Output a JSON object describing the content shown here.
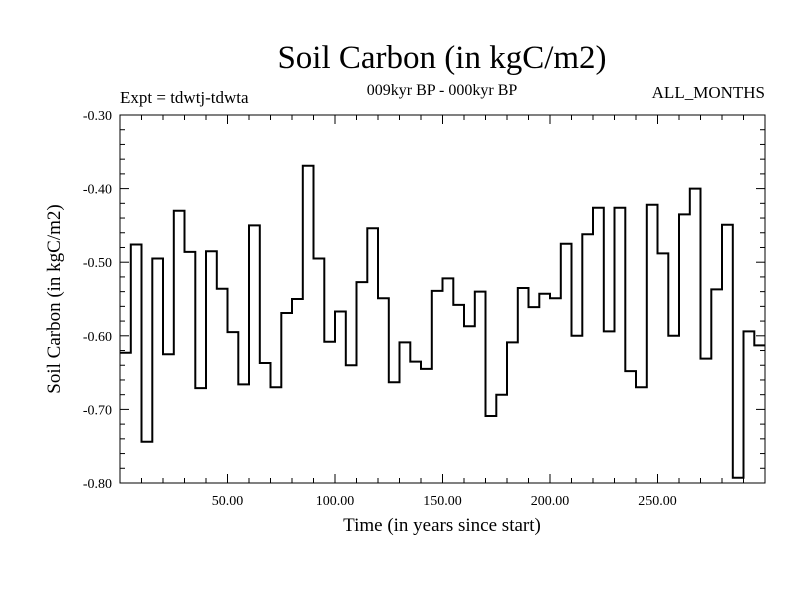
{
  "chart_data": {
    "type": "line",
    "style": "step",
    "title": "Soil Carbon (in kgC/m2)",
    "subtitle": "009kyr BP - 000kyr BP",
    "left_label": "Expt = tdwtj-tdwta",
    "right_label": "ALL_MONTHS",
    "xlabel": "Time (in years since start)",
    "ylabel": "Soil Carbon (in kgC/m2)",
    "xlim": [
      0,
      300
    ],
    "ylim": [
      -0.8,
      -0.3
    ],
    "xticks": [
      50,
      100,
      150,
      200,
      250
    ],
    "xtick_labels": [
      "50.00",
      "100.00",
      "150.00",
      "200.00",
      "250.00"
    ],
    "yticks": [
      -0.3,
      -0.4,
      -0.5,
      -0.6,
      -0.7,
      -0.8
    ],
    "ytick_labels": [
      "-0.30",
      "-0.40",
      "-0.50",
      "-0.60",
      "-0.70",
      "-0.80"
    ],
    "bin_width": 5,
    "x": [
      0,
      5,
      10,
      15,
      20,
      25,
      30,
      35,
      40,
      45,
      50,
      55,
      60,
      65,
      70,
      75,
      80,
      85,
      90,
      95,
      100,
      105,
      110,
      115,
      120,
      125,
      130,
      135,
      140,
      145,
      150,
      155,
      160,
      165,
      170,
      175,
      180,
      185,
      190,
      195,
      200,
      205,
      210,
      215,
      220,
      225,
      230,
      235,
      240,
      245,
      250,
      255,
      260,
      265,
      270,
      275,
      280,
      285,
      290,
      295
    ],
    "values": [
      -0.623,
      -0.476,
      -0.744,
      -0.495,
      -0.625,
      -0.43,
      -0.486,
      -0.671,
      -0.485,
      -0.536,
      -0.595,
      -0.666,
      -0.45,
      -0.637,
      -0.67,
      -0.569,
      -0.55,
      -0.369,
      -0.495,
      -0.608,
      -0.567,
      -0.64,
      -0.527,
      -0.454,
      -0.549,
      -0.663,
      -0.609,
      -0.635,
      -0.645,
      -0.539,
      -0.522,
      -0.558,
      -0.587,
      -0.54,
      -0.709,
      -0.68,
      -0.609,
      -0.535,
      -0.561,
      -0.543,
      -0.549,
      -0.475,
      -0.6,
      -0.462,
      -0.426,
      -0.594,
      -0.426,
      -0.648,
      -0.67,
      -0.422,
      -0.488,
      -0.6,
      -0.435,
      -0.4,
      -0.631,
      -0.537,
      -0.449,
      -0.793,
      -0.594,
      -0.613
    ]
  }
}
